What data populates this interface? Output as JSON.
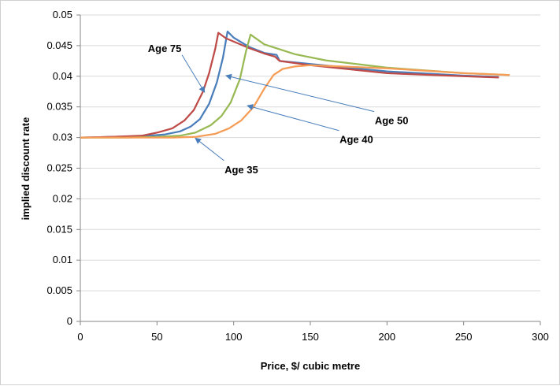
{
  "chart_data": {
    "type": "line",
    "title": "",
    "xlabel": "Price, $/ cubic metre",
    "ylabel": "implied discount rate",
    "xlim": [
      0,
      300
    ],
    "ylim": [
      0,
      0.05
    ],
    "grid": "horizontal",
    "legend": "none",
    "x_ticks": [
      "0",
      "50",
      "100",
      "150",
      "200",
      "250",
      "300"
    ],
    "y_ticks": [
      "0",
      "0.005",
      "0.01",
      "0.015",
      "0.02",
      "0.025",
      "0.03",
      "0.035",
      "0.04",
      "0.045",
      "0.05"
    ],
    "series": [
      {
        "color": "#4A7EBB",
        "points": [
          [
            0,
            0.03
          ],
          [
            20,
            0.0301
          ],
          [
            40,
            0.0302
          ],
          [
            55,
            0.0305
          ],
          [
            65,
            0.031
          ],
          [
            72,
            0.0318
          ],
          [
            78,
            0.033
          ],
          [
            84,
            0.0355
          ],
          [
            89,
            0.039
          ],
          [
            93,
            0.043
          ],
          [
            96,
            0.0473
          ],
          [
            100,
            0.0463
          ],
          [
            110,
            0.0448
          ],
          [
            120,
            0.0438
          ],
          [
            128,
            0.0435
          ],
          [
            130,
            0.0425
          ],
          [
            150,
            0.042
          ],
          [
            200,
            0.0408
          ],
          [
            250,
            0.0401
          ],
          [
            273,
            0.0399
          ]
        ]
      },
      {
        "color": "#BE4B48",
        "points": [
          [
            0,
            0.03
          ],
          [
            20,
            0.0301
          ],
          [
            40,
            0.0303
          ],
          [
            50,
            0.0308
          ],
          [
            60,
            0.0315
          ],
          [
            68,
            0.0328
          ],
          [
            74,
            0.0345
          ],
          [
            80,
            0.0375
          ],
          [
            84,
            0.0405
          ],
          [
            88,
            0.0445
          ],
          [
            90,
            0.0471
          ],
          [
            95,
            0.0462
          ],
          [
            110,
            0.0446
          ],
          [
            120,
            0.0437
          ],
          [
            127,
            0.0432
          ],
          [
            130,
            0.0425
          ],
          [
            150,
            0.0418
          ],
          [
            200,
            0.0405
          ],
          [
            250,
            0.04
          ],
          [
            273,
            0.0398
          ]
        ]
      },
      {
        "color": "#98B954",
        "points": [
          [
            0,
            0.03
          ],
          [
            30,
            0.03
          ],
          [
            50,
            0.0301
          ],
          [
            65,
            0.0303
          ],
          [
            75,
            0.0308
          ],
          [
            85,
            0.032
          ],
          [
            92,
            0.0335
          ],
          [
            98,
            0.0357
          ],
          [
            104,
            0.0395
          ],
          [
            108,
            0.044
          ],
          [
            111,
            0.0468
          ],
          [
            120,
            0.0452
          ],
          [
            140,
            0.0436
          ],
          [
            160,
            0.0426
          ],
          [
            200,
            0.0414
          ],
          [
            250,
            0.0405
          ],
          [
            280,
            0.0402
          ]
        ]
      },
      {
        "color": "#F59D56",
        "points": [
          [
            0,
            0.03
          ],
          [
            40,
            0.03
          ],
          [
            60,
            0.03
          ],
          [
            75,
            0.0301
          ],
          [
            88,
            0.0306
          ],
          [
            97,
            0.0315
          ],
          [
            105,
            0.0328
          ],
          [
            113,
            0.035
          ],
          [
            120,
            0.038
          ],
          [
            126,
            0.0402
          ],
          [
            132,
            0.0412
          ],
          [
            140,
            0.0416
          ],
          [
            150,
            0.0418
          ],
          [
            200,
            0.0413
          ],
          [
            250,
            0.0405
          ],
          [
            280,
            0.0402
          ]
        ]
      }
    ],
    "annotations": [
      {
        "text": "Age 75",
        "label_x": 55,
        "label_y": 0.0445,
        "arrow_to": [
          81,
          0.0374
        ]
      },
      {
        "text": "Age 50",
        "label_x": 203,
        "label_y": 0.0327,
        "arrow_to": [
          95,
          0.0401
        ]
      },
      {
        "text": "Age 40",
        "label_x": 180,
        "label_y": 0.0296,
        "arrow_to": [
          109,
          0.0352
        ]
      },
      {
        "text": "Age 35",
        "label_x": 105,
        "label_y": 0.0247,
        "arrow_to": [
          75,
          0.0299
        ]
      }
    ]
  }
}
